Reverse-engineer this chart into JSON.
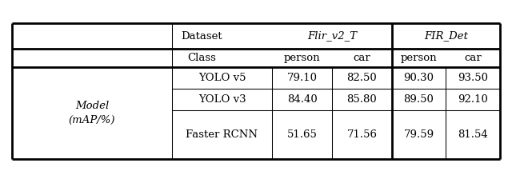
{
  "rows": [
    [
      "YOLO v5",
      "79.10",
      "82.50",
      "90.30",
      "93.50"
    ],
    [
      "YOLO v3",
      "84.40",
      "85.80",
      "89.50",
      "92.10"
    ],
    [
      "Faster RCNN",
      "51.65",
      "71.56",
      "79.59",
      "81.54"
    ]
  ],
  "row_label": "Model\n(mAP/%)",
  "header1_dataset": "Dataset",
  "header1_flir": "Flir_v2_T",
  "header1_fir": "FIR_Det",
  "header2_class": "Class",
  "header2_person1": "person",
  "header2_car1": "car",
  "header2_person2": "person",
  "header2_car2": "car",
  "bg_color": "#ffffff",
  "font_size": 9.5,
  "thick_lw": 2.0,
  "thin_lw": 0.75
}
